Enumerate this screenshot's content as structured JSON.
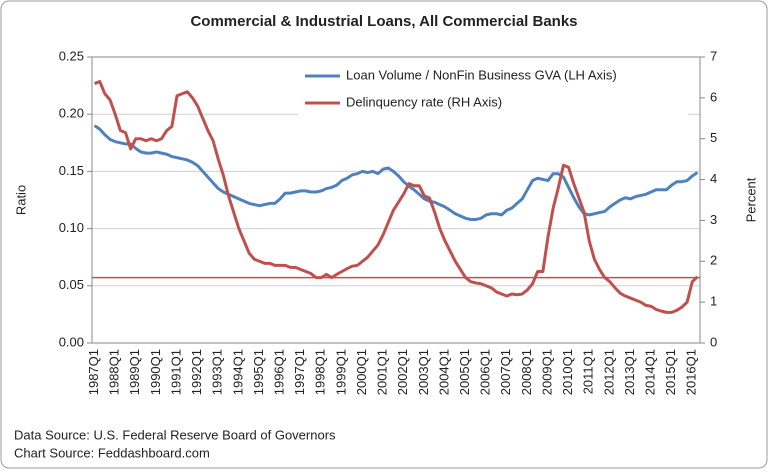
{
  "chart_data": {
    "type": "line",
    "title": "Commercial & Industrial Loans, All Commercial Banks",
    "y_label": "Ratio",
    "y2_label": "Percent",
    "sources": [
      "Data Source: U.S. Federal Reserve Board of Governors",
      "Chart Source: Feddashboard.com"
    ],
    "categories": [
      "1987Q1",
      null,
      null,
      null,
      "1988Q1",
      null,
      null,
      null,
      "1989Q1",
      null,
      null,
      null,
      "1990Q1",
      null,
      null,
      null,
      "1991Q1",
      null,
      null,
      null,
      "1992Q1",
      null,
      null,
      null,
      "1993Q1",
      null,
      null,
      null,
      "1994Q1",
      null,
      null,
      null,
      "1995Q1",
      null,
      null,
      null,
      "1996Q1",
      null,
      null,
      null,
      "1997Q1",
      null,
      null,
      null,
      "1998Q1",
      null,
      null,
      null,
      "1999Q1",
      null,
      null,
      null,
      "2000Q1",
      null,
      null,
      null,
      "2001Q1",
      null,
      null,
      null,
      "2002Q1",
      null,
      null,
      null,
      "2003Q1",
      null,
      null,
      null,
      "2004Q1",
      null,
      null,
      null,
      "2005Q1",
      null,
      null,
      null,
      "2006Q1",
      null,
      null,
      null,
      "2007Q1",
      null,
      null,
      null,
      "2008Q1",
      null,
      null,
      null,
      "2009Q1",
      null,
      null,
      null,
      "2010Q1",
      null,
      null,
      null,
      "2011Q1",
      null,
      null,
      null,
      "2012Q1",
      null,
      null,
      null,
      "2013Q1",
      null,
      null,
      null,
      "2014Q1",
      null,
      null,
      null,
      "2015Q1",
      null,
      null,
      null,
      "2016Q1",
      null
    ],
    "series": [
      {
        "name": "Loan Volume / NonFin Business GVA (LH Axis)",
        "color": "#4f81bd",
        "axis": "y",
        "values": [
          0.19,
          0.187,
          0.182,
          0.178,
          0.176,
          0.175,
          0.174,
          0.174,
          0.17,
          0.167,
          0.166,
          0.166,
          0.167,
          0.166,
          0.165,
          0.163,
          0.162,
          0.161,
          0.16,
          0.158,
          0.155,
          0.15,
          0.145,
          0.14,
          0.135,
          0.132,
          0.13,
          0.128,
          0.126,
          0.124,
          0.122,
          0.121,
          0.12,
          0.121,
          0.122,
          0.122,
          0.126,
          0.131,
          0.131,
          0.132,
          0.133,
          0.133,
          0.132,
          0.132,
          0.133,
          0.135,
          0.136,
          0.138,
          0.142,
          0.144,
          0.147,
          0.148,
          0.15,
          0.149,
          0.15,
          0.148,
          0.152,
          0.153,
          0.15,
          0.146,
          0.141,
          0.137,
          0.134,
          0.13,
          0.126,
          0.124,
          0.123,
          0.121,
          0.119,
          0.116,
          0.113,
          0.111,
          0.109,
          0.108,
          0.108,
          0.109,
          0.112,
          0.113,
          0.113,
          0.112,
          0.116,
          0.118,
          0.122,
          0.126,
          0.134,
          0.142,
          0.144,
          0.143,
          0.142,
          0.148,
          0.148,
          0.145,
          0.136,
          0.127,
          0.119,
          0.113,
          0.112,
          0.113,
          0.114,
          0.115,
          0.119,
          0.122,
          0.125,
          0.127,
          0.126,
          0.128,
          0.129,
          0.13,
          0.132,
          0.134,
          0.134,
          0.134,
          0.138,
          0.141,
          0.141,
          0.142,
          0.146,
          0.149
        ]
      },
      {
        "name": "Delinquency rate (RH Axis)",
        "color": "#c0504d",
        "axis": "y2",
        "values": [
          6.35,
          6.4,
          6.1,
          5.95,
          5.6,
          5.2,
          5.15,
          4.75,
          5.0,
          5.0,
          4.95,
          5.0,
          4.95,
          5.0,
          5.2,
          5.3,
          6.05,
          6.1,
          6.15,
          6.0,
          5.8,
          5.5,
          5.2,
          4.95,
          4.5,
          4.1,
          3.6,
          3.2,
          2.8,
          2.5,
          2.2,
          2.05,
          2.0,
          1.95,
          1.95,
          1.9,
          1.9,
          1.9,
          1.85,
          1.85,
          1.8,
          1.75,
          1.7,
          1.6,
          1.6,
          1.68,
          1.6,
          1.68,
          1.75,
          1.82,
          1.88,
          1.9,
          2.0,
          2.1,
          2.25,
          2.4,
          2.65,
          2.95,
          3.25,
          3.45,
          3.65,
          3.9,
          3.85,
          3.85,
          3.6,
          3.55,
          3.2,
          2.8,
          2.5,
          2.25,
          2.0,
          1.8,
          1.6,
          1.5,
          1.47,
          1.45,
          1.4,
          1.35,
          1.25,
          1.2,
          1.15,
          1.2,
          1.18,
          1.2,
          1.3,
          1.45,
          1.75,
          1.75,
          2.6,
          3.3,
          3.8,
          4.35,
          4.3,
          3.9,
          3.55,
          3.2,
          2.5,
          2.05,
          1.8,
          1.6,
          1.5,
          1.35,
          1.22,
          1.15,
          1.1,
          1.05,
          1.0,
          0.92,
          0.9,
          0.82,
          0.78,
          0.75,
          0.75,
          0.8,
          0.88,
          1.0,
          1.5,
          1.62
        ]
      }
    ],
    "reference_line": {
      "value": 1.6,
      "axis": "y2",
      "color": "#c0504d"
    },
    "ylim": [
      0,
      0.25
    ],
    "yticks": [
      {
        "value": 0,
        "label": "0.00"
      },
      {
        "value": 0.05,
        "label": "0.05"
      },
      {
        "value": 0.1,
        "label": "0.10"
      },
      {
        "value": 0.15,
        "label": "0.15"
      },
      {
        "value": 0.2,
        "label": "0.20"
      },
      {
        "value": 0.25,
        "label": "0.25"
      }
    ],
    "y2lim": [
      0,
      7
    ],
    "y2ticks": [
      0,
      1,
      2,
      3,
      4,
      5,
      6,
      7
    ],
    "grid": true
  }
}
